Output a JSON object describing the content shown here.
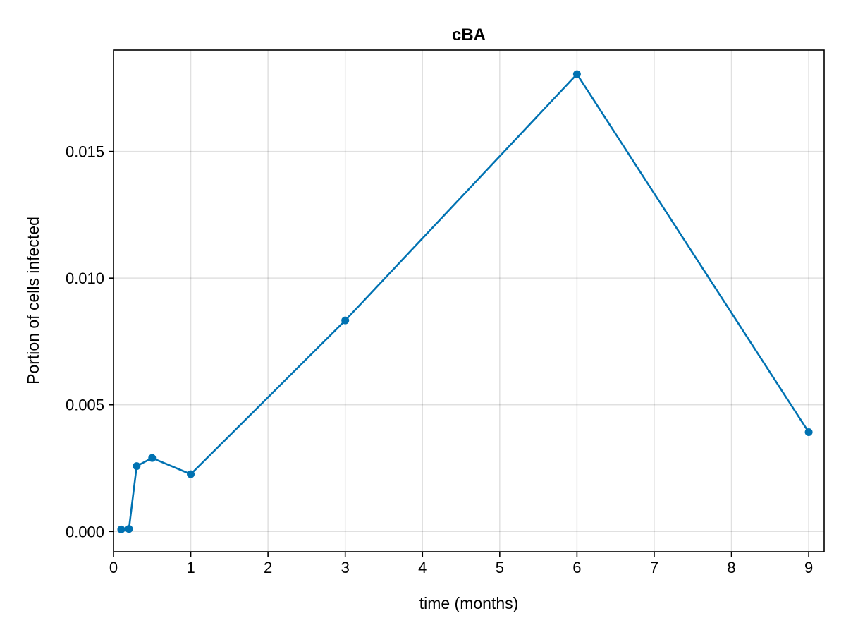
{
  "chart_data": {
    "type": "line",
    "title": "cBA",
    "xlabel": "time (months)",
    "ylabel": "Portion of cells infected",
    "xlim": [
      0,
      9.2
    ],
    "ylim": [
      -0.0008,
      0.019
    ],
    "xticks": [
      0,
      1,
      2,
      3,
      4,
      5,
      6,
      7,
      8,
      9
    ],
    "xtick_labels": [
      "0",
      "1",
      "2",
      "3",
      "4",
      "5",
      "6",
      "7",
      "8",
      "9"
    ],
    "yticks": [
      0.0,
      0.005,
      0.01,
      0.015
    ],
    "ytick_labels": [
      "0.000",
      "0.005",
      "0.010",
      "0.015"
    ],
    "grid": true,
    "legend": "none",
    "series": [
      {
        "color": "#0072b2",
        "markers": true,
        "x": [
          0.1,
          0.2,
          0.3,
          0.5,
          1,
          3,
          6,
          9
        ],
        "y": [
          8e-05,
          0.0001,
          0.00258,
          0.0029,
          0.00226,
          0.00833,
          0.01805,
          0.00392
        ]
      }
    ]
  }
}
